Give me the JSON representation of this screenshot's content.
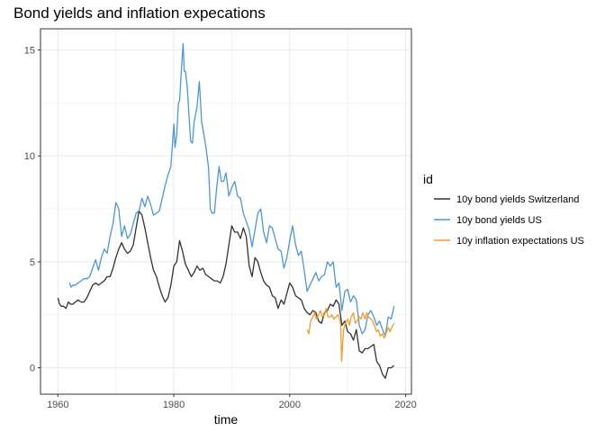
{
  "chart_data": {
    "type": "line",
    "title": "Bond yields and inflation expecations",
    "xlabel": "time",
    "ylabel": "",
    "xlim": [
      1957,
      2021
    ],
    "ylim": [
      -1.25,
      16
    ],
    "x_ticks": [
      1960,
      1980,
      2000,
      2020
    ],
    "y_ticks": [
      0,
      5,
      10,
      15
    ],
    "grid": true,
    "legend": {
      "title": "id",
      "position": "right"
    },
    "series": [
      {
        "name": "10y bond yields Switzerland",
        "color": "#333333",
        "x": [
          1960.0,
          1960.3,
          1960.6,
          1961.0,
          1961.4,
          1961.8,
          1962.2,
          1962.6,
          1963.0,
          1963.5,
          1964.0,
          1964.5,
          1965.0,
          1965.5,
          1966.0,
          1966.5,
          1967.0,
          1967.5,
          1968.0,
          1968.5,
          1969.0,
          1969.5,
          1970.0,
          1970.5,
          1971.0,
          1971.5,
          1972.0,
          1972.5,
          1973.0,
          1973.5,
          1974.0,
          1974.5,
          1975.0,
          1975.5,
          1976.0,
          1976.5,
          1977.0,
          1977.5,
          1978.0,
          1978.5,
          1979.0,
          1979.5,
          1980.0,
          1980.5,
          1981.0,
          1981.5,
          1982.0,
          1982.5,
          1983.0,
          1983.5,
          1984.0,
          1984.5,
          1985.0,
          1985.5,
          1986.0,
          1986.5,
          1987.0,
          1987.5,
          1988.0,
          1988.5,
          1989.0,
          1989.5,
          1990.0,
          1990.5,
          1991.0,
          1991.5,
          1992.0,
          1992.5,
          1993.0,
          1993.5,
          1994.0,
          1994.5,
          1995.0,
          1995.5,
          1996.0,
          1996.5,
          1997.0,
          1997.5,
          1998.0,
          1998.5,
          1999.0,
          1999.5,
          2000.0,
          2000.5,
          2001.0,
          2001.5,
          2002.0,
          2002.5,
          2003.0,
          2003.5,
          2004.0,
          2004.5,
          2005.0,
          2005.5,
          2006.0,
          2006.5,
          2007.0,
          2007.5,
          2008.0,
          2008.5,
          2009.0,
          2009.5,
          2010.0,
          2010.5,
          2011.0,
          2011.5,
          2012.0,
          2012.5,
          2013.0,
          2013.5,
          2014.0,
          2014.5,
          2015.0,
          2015.5,
          2016.0,
          2016.5,
          2017.0,
          2017.5,
          2018.0
        ],
        "values": [
          3.3,
          3.0,
          2.9,
          2.9,
          2.8,
          3.1,
          3.0,
          3.0,
          3.1,
          3.2,
          3.1,
          3.1,
          3.3,
          3.6,
          3.9,
          4.0,
          3.9,
          4.0,
          4.1,
          4.3,
          4.3,
          4.7,
          5.2,
          5.6,
          5.9,
          5.6,
          5.4,
          5.5,
          5.8,
          6.6,
          7.4,
          7.2,
          6.6,
          5.9,
          5.2,
          4.6,
          4.3,
          3.8,
          3.4,
          3.1,
          3.3,
          3.9,
          4.8,
          5.0,
          6.0,
          5.5,
          4.9,
          4.6,
          4.3,
          4.5,
          4.8,
          4.6,
          4.7,
          4.4,
          4.3,
          4.2,
          4.1,
          4.1,
          4.0,
          4.3,
          4.9,
          5.8,
          6.7,
          6.4,
          6.4,
          6.1,
          6.6,
          6.2,
          4.8,
          4.3,
          5.2,
          5.0,
          4.5,
          4.1,
          3.9,
          3.8,
          3.4,
          3.3,
          2.8,
          3.2,
          3.0,
          3.5,
          4.0,
          3.8,
          3.4,
          3.3,
          3.2,
          2.8,
          2.6,
          2.5,
          2.7,
          2.6,
          2.2,
          2.1,
          2.6,
          2.7,
          3.0,
          2.9,
          3.2,
          3.0,
          2.0,
          2.2,
          1.7,
          1.6,
          1.3,
          1.8,
          0.8,
          0.7,
          0.9,
          0.9,
          1.0,
          1.1,
          0.3,
          0.1,
          -0.3,
          -0.5,
          0.0,
          0.0,
          0.1
        ]
      },
      {
        "name": "10y bond yields US",
        "color": "#4c98d6",
        "x": [
          1962.0,
          1962.3,
          1962.6,
          1963.0,
          1963.5,
          1964.0,
          1964.5,
          1965.0,
          1965.5,
          1966.0,
          1966.5,
          1967.0,
          1967.5,
          1968.0,
          1968.5,
          1969.0,
          1969.5,
          1970.0,
          1970.5,
          1971.0,
          1971.5,
          1972.0,
          1972.5,
          1973.0,
          1973.5,
          1974.0,
          1974.5,
          1975.0,
          1975.5,
          1976.0,
          1976.5,
          1977.0,
          1977.5,
          1978.0,
          1978.5,
          1979.0,
          1979.5,
          1980.0,
          1980.2,
          1980.5,
          1980.8,
          1981.0,
          1981.3,
          1981.6,
          1981.8,
          1982.0,
          1982.3,
          1982.6,
          1982.9,
          1983.2,
          1983.5,
          1984.0,
          1984.4,
          1984.8,
          1985.2,
          1985.6,
          1986.0,
          1986.3,
          1986.6,
          1987.0,
          1987.4,
          1987.8,
          1988.2,
          1988.6,
          1989.0,
          1989.5,
          1990.0,
          1990.5,
          1991.0,
          1991.5,
          1992.0,
          1992.5,
          1993.0,
          1993.5,
          1994.0,
          1994.5,
          1995.0,
          1995.5,
          1996.0,
          1996.5,
          1997.0,
          1997.5,
          1998.0,
          1998.5,
          1999.0,
          1999.5,
          2000.0,
          2000.5,
          2001.0,
          2001.5,
          2002.0,
          2002.5,
          2003.0,
          2003.5,
          2004.0,
          2004.5,
          2005.0,
          2005.5,
          2006.0,
          2006.5,
          2007.0,
          2007.5,
          2008.0,
          2008.5,
          2009.0,
          2009.5,
          2010.0,
          2010.5,
          2011.0,
          2011.5,
          2012.0,
          2012.5,
          2013.0,
          2013.5,
          2014.0,
          2014.5,
          2015.0,
          2015.5,
          2016.0,
          2016.5,
          2017.0,
          2017.5,
          2018.0
        ],
        "values": [
          4.0,
          3.8,
          3.9,
          3.9,
          4.0,
          4.1,
          4.2,
          4.2,
          4.3,
          4.7,
          5.1,
          4.6,
          5.2,
          5.6,
          5.4,
          6.2,
          6.8,
          7.8,
          7.5,
          6.2,
          6.7,
          6.1,
          6.3,
          6.8,
          7.3,
          7.4,
          8.0,
          7.6,
          8.1,
          7.7,
          7.2,
          7.3,
          7.4,
          8.0,
          8.6,
          9.1,
          9.5,
          11.5,
          10.4,
          11.0,
          12.5,
          12.6,
          14.0,
          15.3,
          14.0,
          14.0,
          13.3,
          12.0,
          10.7,
          10.6,
          11.6,
          12.3,
          13.5,
          11.6,
          11.0,
          10.3,
          9.4,
          7.5,
          7.3,
          7.3,
          8.5,
          9.5,
          8.8,
          8.8,
          9.2,
          8.1,
          8.5,
          8.8,
          8.1,
          8.0,
          7.3,
          6.9,
          6.5,
          5.7,
          6.5,
          7.3,
          7.5,
          6.4,
          5.9,
          6.7,
          6.6,
          6.1,
          5.6,
          5.5,
          4.7,
          5.2,
          6.0,
          6.7,
          5.8,
          5.3,
          5.5,
          4.6,
          3.6,
          3.9,
          4.2,
          4.5,
          4.1,
          4.3,
          4.4,
          5.0,
          4.8,
          5.0,
          3.8,
          4.0,
          2.7,
          3.6,
          3.7,
          3.1,
          3.4,
          3.2,
          2.0,
          1.6,
          1.8,
          2.5,
          2.7,
          2.4,
          2.0,
          2.2,
          1.8,
          1.5,
          2.4,
          2.3,
          2.9
        ]
      },
      {
        "name": "10y inflation expectations US",
        "color": "#f59a2e",
        "x": [
          2003.0,
          2003.3,
          2003.6,
          2004.0,
          2004.3,
          2004.6,
          2005.0,
          2005.3,
          2005.6,
          2006.0,
          2006.3,
          2006.6,
          2007.0,
          2007.3,
          2007.6,
          2008.0,
          2008.3,
          2008.6,
          2008.8,
          2008.95,
          2009.1,
          2009.3,
          2009.6,
          2010.0,
          2010.3,
          2010.6,
          2011.0,
          2011.3,
          2011.6,
          2012.0,
          2012.3,
          2012.6,
          2013.0,
          2013.3,
          2013.6,
          2014.0,
          2014.3,
          2014.6,
          2015.0,
          2015.3,
          2015.6,
          2016.0,
          2016.3,
          2016.6,
          2017.0,
          2017.3,
          2017.6,
          2018.0
        ],
        "values": [
          1.8,
          1.6,
          2.2,
          2.4,
          2.6,
          2.3,
          2.5,
          2.7,
          2.4,
          2.5,
          2.8,
          2.4,
          2.4,
          2.5,
          2.3,
          2.4,
          2.5,
          2.3,
          2.0,
          0.3,
          1.0,
          1.8,
          2.1,
          2.3,
          2.0,
          2.4,
          2.6,
          2.1,
          2.2,
          2.4,
          2.3,
          2.6,
          2.3,
          2.6,
          2.4,
          2.3,
          2.2,
          2.0,
          1.7,
          1.8,
          1.5,
          1.6,
          1.4,
          1.6,
          1.9,
          1.7,
          1.9,
          2.1
        ]
      }
    ]
  }
}
